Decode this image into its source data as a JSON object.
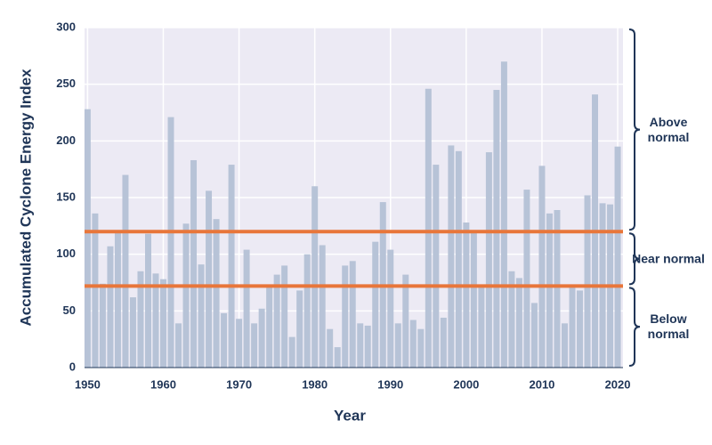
{
  "chart_data": {
    "type": "bar",
    "x_label": "Year",
    "y_label": "Accumulated Cyclone Energy Index",
    "x": [
      1950,
      1951,
      1952,
      1953,
      1954,
      1955,
      1956,
      1957,
      1958,
      1959,
      1960,
      1961,
      1962,
      1963,
      1964,
      1965,
      1966,
      1967,
      1968,
      1969,
      1970,
      1971,
      1972,
      1973,
      1974,
      1975,
      1976,
      1977,
      1978,
      1979,
      1980,
      1981,
      1982,
      1983,
      1984,
      1985,
      1986,
      1987,
      1988,
      1989,
      1990,
      1991,
      1992,
      1993,
      1994,
      1995,
      1996,
      1997,
      1998,
      1999,
      2000,
      2001,
      2002,
      2003,
      2004,
      2005,
      2006,
      2007,
      2008,
      2009,
      2010,
      2011,
      2012,
      2013,
      2014,
      2015,
      2016,
      2017,
      2018,
      2019,
      2020
    ],
    "values": [
      228,
      136,
      74,
      107,
      120,
      170,
      62,
      85,
      118,
      83,
      78,
      221,
      39,
      127,
      183,
      91,
      156,
      131,
      48,
      179,
      43,
      104,
      39,
      52,
      73,
      82,
      90,
      27,
      68,
      100,
      160,
      108,
      34,
      18,
      90,
      94,
      39,
      37,
      111,
      146,
      104,
      39,
      82,
      42,
      34,
      246,
      179,
      44,
      196,
      191,
      128,
      119,
      72,
      190,
      245,
      270,
      85,
      79,
      157,
      57,
      178,
      136,
      139,
      39,
      72,
      68,
      152,
      241,
      145,
      144,
      195
    ],
    "color": "#b7c3d7",
    "xlim": [
      1949.6,
      2020.7
    ],
    "xticks": [
      1950,
      1960,
      1970,
      1980,
      1990,
      2000,
      2010,
      2020
    ],
    "ylim": [
      0,
      300
    ],
    "yticks": [
      0,
      50,
      100,
      150,
      200,
      250,
      300
    ],
    "grid": true,
    "reference_lines": [
      {
        "value": 120,
        "color": "#e8763a"
      },
      {
        "value": 72,
        "color": "#e8763a"
      }
    ],
    "zones": [
      {
        "label": "Above normal",
        "from": 120,
        "to": 300
      },
      {
        "label": "Near normal",
        "from": 72,
        "to": 120
      },
      {
        "label": "Below normal",
        "from": 0,
        "to": 72
      }
    ]
  }
}
